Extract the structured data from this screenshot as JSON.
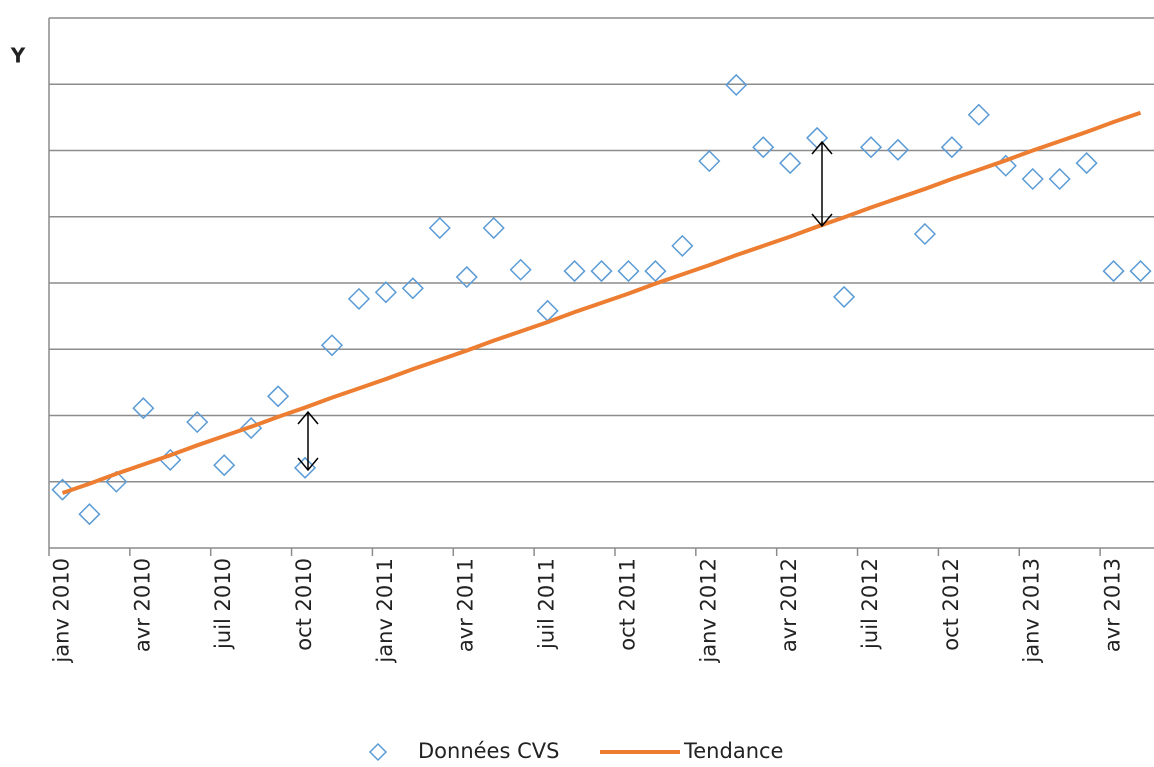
{
  "chart_data": {
    "type": "line",
    "y_label": "Y",
    "categories": [
      "janv 2010",
      null,
      null,
      "avr 2010",
      null,
      null,
      "juil 2010",
      null,
      null,
      "oct 2010",
      null,
      null,
      "janv 2011",
      null,
      null,
      "avr 2011",
      null,
      null,
      "juil 2011",
      null,
      null,
      "oct 2011",
      null,
      null,
      "janv 2012",
      null,
      null,
      "avr 2012",
      null,
      null,
      "juil 2012",
      null,
      null,
      "oct 2012",
      null,
      null,
      "janv 2013",
      null,
      null,
      "avr 2013",
      null
    ],
    "series": [
      {
        "name": "Données CVS",
        "type": "scatter",
        "color": "#5b9bd5",
        "values": [
          0.88,
          0.51,
          1.0,
          2.11,
          1.33,
          1.9,
          1.25,
          1.81,
          2.29,
          1.21,
          3.06,
          3.76,
          3.86,
          3.92,
          4.83,
          4.09,
          4.83,
          4.2,
          3.58,
          4.18,
          4.18,
          4.18,
          4.18,
          4.56,
          5.84,
          6.99,
          6.05,
          5.81,
          6.19,
          3.79,
          6.05,
          6.01,
          4.74,
          6.05,
          6.54,
          5.77,
          5.57,
          5.57,
          5.81,
          4.18,
          4.18
        ]
      },
      {
        "name": "Tendance",
        "type": "line",
        "color": "#ed7d31",
        "values": [
          0.83,
          0.97,
          1.12,
          1.26,
          1.4,
          1.55,
          1.69,
          1.83,
          1.98,
          2.12,
          2.27,
          2.41,
          2.55,
          2.7,
          2.84,
          2.98,
          3.13,
          3.27,
          3.41,
          3.56,
          3.7,
          3.84,
          3.99,
          4.13,
          4.27,
          4.42,
          4.56,
          4.7,
          4.85,
          4.99,
          5.14,
          5.28,
          5.42,
          5.57,
          5.71,
          5.85,
          6.0,
          6.14,
          6.28,
          6.43,
          6.57
        ]
      }
    ],
    "ylim": [
      0,
      8
    ],
    "yticks": [
      0,
      1,
      2,
      3,
      4,
      5,
      6,
      7,
      8
    ],
    "grid": true
  }
}
